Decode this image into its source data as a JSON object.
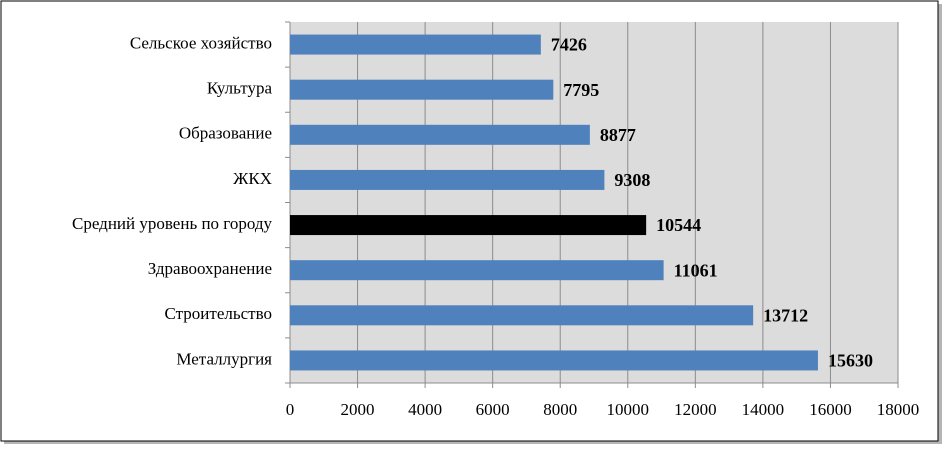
{
  "chart_data": {
    "type": "bar",
    "orientation": "horizontal",
    "categories": [
      "Сельское хозяйство",
      "Культура",
      "Образование",
      "ЖКХ",
      "Средний уровень по городу",
      "Здравоохранение",
      "Строительство",
      "Металлургия"
    ],
    "values": [
      7426,
      7795,
      8877,
      9308,
      10544,
      11061,
      13712,
      15630
    ],
    "colors": [
      "#4f81bd",
      "#4f81bd",
      "#4f81bd",
      "#4f81bd",
      "#000000",
      "#4f81bd",
      "#4f81bd",
      "#4f81bd"
    ],
    "xlim": [
      0,
      18000
    ],
    "xticks": [
      0,
      2000,
      4000,
      6000,
      8000,
      10000,
      12000,
      14000,
      16000,
      18000
    ],
    "grid": true
  }
}
